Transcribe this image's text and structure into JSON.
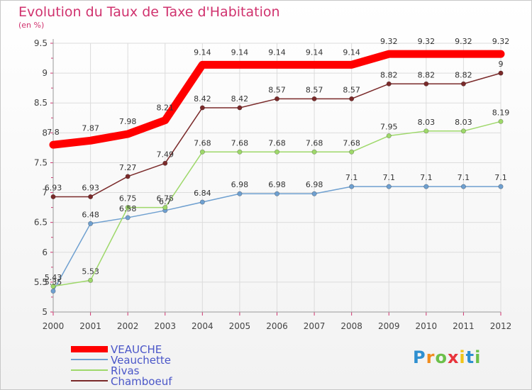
{
  "chart_data": {
    "type": "line",
    "title": "Evolution du Taux de Taxe d'Habitation",
    "subtitle": "(en %)",
    "x": [
      "2000",
      "2001",
      "2002",
      "2003",
      "2004",
      "2005",
      "2006",
      "2007",
      "2008",
      "2009",
      "2010",
      "2011",
      "2012"
    ],
    "ylim": [
      5,
      9.5
    ],
    "yticks": [
      "5",
      "5.5",
      "6",
      "6.5",
      "7",
      "7.5",
      "8",
      "8.5",
      "9",
      "9.5"
    ],
    "grid": true,
    "legend_position": "bottom-left",
    "series": [
      {
        "name": "VEAUCHE",
        "color": "#ff0000",
        "values": [
          7.8,
          7.87,
          7.98,
          8.21,
          9.14,
          9.14,
          9.14,
          9.14,
          9.14,
          9.32,
          9.32,
          9.32,
          9.32
        ],
        "labels": [
          "7.8",
          "7.87",
          "7.98",
          "8.21",
          "9.14",
          "9.14",
          "9.14",
          "9.14",
          "9.14",
          "9.32",
          "9.32",
          "9.32",
          "9.32"
        ]
      },
      {
        "name": "Veauchette",
        "color": "#6fa0d0",
        "values": [
          5.35,
          6.48,
          6.58,
          6.7,
          6.84,
          6.98,
          6.98,
          6.98,
          7.1,
          7.1,
          7.1,
          7.1,
          7.1
        ],
        "labels": [
          "5.35",
          "6.48",
          "6.58",
          "6.7",
          "6.84",
          "6.98",
          "6.98",
          "6.98",
          "7.1",
          "7.1",
          "7.1",
          "7.1",
          "7.1"
        ]
      },
      {
        "name": "Rivas",
        "color": "#9ed86a",
        "values": [
          5.43,
          5.53,
          6.75,
          6.75,
          7.68,
          7.68,
          7.68,
          7.68,
          7.68,
          7.95,
          8.03,
          8.03,
          8.19
        ],
        "labels": [
          "5.43",
          "5.53",
          "6.75",
          "6.75",
          "7.68",
          "7.68",
          "7.68",
          "7.68",
          "7.68",
          "7.95",
          "8.03",
          "8.03",
          "8.19"
        ]
      },
      {
        "name": "Chamboeuf",
        "color": "#7a2a2a",
        "values": [
          6.93,
          6.93,
          7.27,
          7.49,
          8.42,
          8.42,
          8.57,
          8.57,
          8.57,
          8.82,
          8.82,
          8.82,
          9
        ],
        "labels": [
          "6.93",
          "6.93",
          "7.27",
          "7.49",
          "8.42",
          "8.42",
          "8.57",
          "8.57",
          "8.57",
          "8.82",
          "8.82",
          "8.82",
          "9"
        ]
      }
    ]
  },
  "logo": {
    "letters": [
      "P",
      "r",
      "o",
      "x",
      "i",
      "t",
      "i"
    ],
    "colors": [
      "#2e8fd0",
      "#f08c1e",
      "#6cc04a",
      "#e8343c",
      "#f0c419",
      "#2e8fd0",
      "#6cc04a"
    ]
  }
}
